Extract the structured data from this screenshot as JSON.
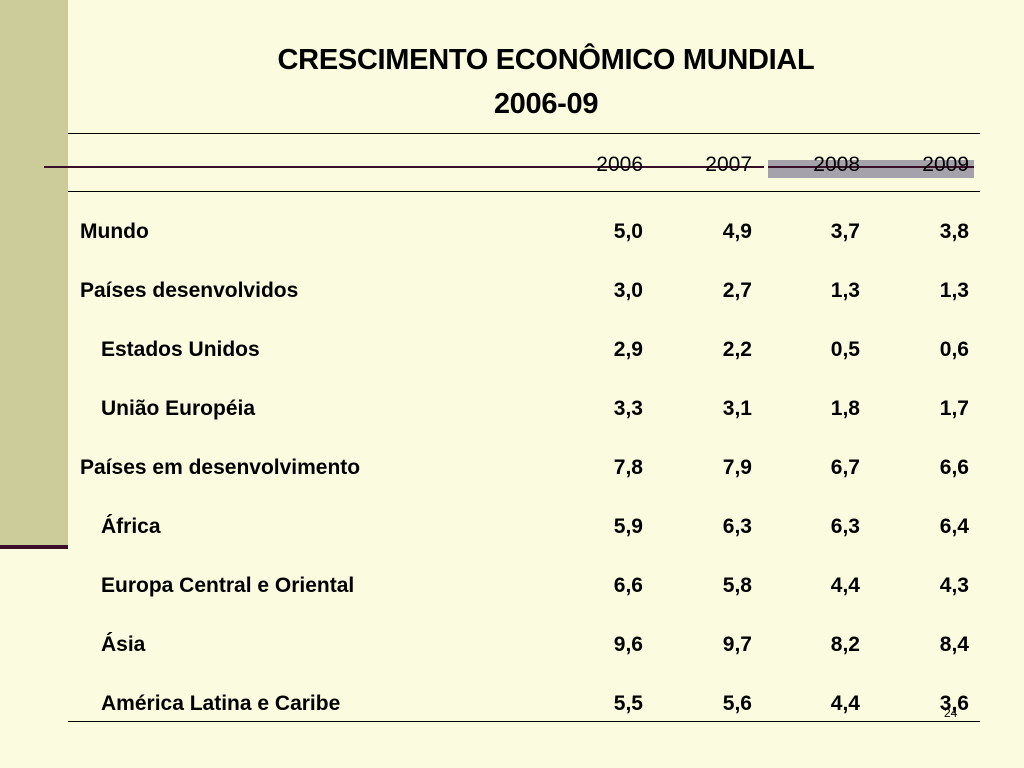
{
  "title": {
    "line1": "CRESCIMENTO ECONÔMICO MUNDIAL",
    "line2": "2006-09"
  },
  "columns": [
    "2006",
    "2007",
    "2008",
    "2009"
  ],
  "rows": [
    {
      "label": "Mundo",
      "values": [
        "5,0",
        "4,9",
        "3,7",
        "3,8"
      ]
    },
    {
      "label": "Países desenvolvidos",
      "values": [
        "3,0",
        "2,7",
        "1,3",
        "1,3"
      ]
    },
    {
      "label": "Estados Unidos",
      "values": [
        "2,9",
        "2,2",
        "0,5",
        "0,6"
      ]
    },
    {
      "label": "União Européia",
      "values": [
        "3,3",
        "3,1",
        "1,8",
        "1,7"
      ]
    },
    {
      "label": "Países em desenvolvimento",
      "values": [
        "7,8",
        "7,9",
        "6,7",
        "6,6"
      ]
    },
    {
      "label": "África",
      "values": [
        "5,9",
        "6,3",
        "6,3",
        "6,4"
      ]
    },
    {
      "label": "Europa Central e Oriental",
      "values": [
        "6,6",
        "5,8",
        "4,4",
        "4,3"
      ]
    },
    {
      "label": "Ásia",
      "values": [
        "9,6",
        "9,7",
        "8,2",
        "8,4"
      ]
    },
    {
      "label": "América Latina e Caribe",
      "values": [
        "5,5",
        "5,6",
        "4,4",
        "3,6"
      ]
    }
  ],
  "page_number": "24",
  "colors": {
    "background": "#fbfbdf",
    "side_band": "#cccc9a",
    "accent": "#3a0f2a",
    "highlight": "#a6a2ac"
  }
}
